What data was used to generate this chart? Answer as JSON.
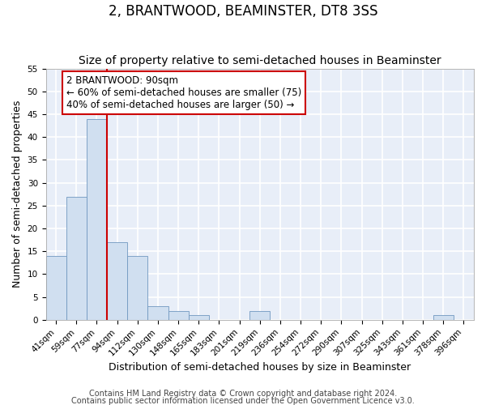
{
  "title": "2, BRANTWOOD, BEAMINSTER, DT8 3SS",
  "subtitle": "Size of property relative to semi-detached houses in Beaminster",
  "xlabel": "Distribution of semi-detached houses by size in Beaminster",
  "ylabel": "Number of semi-detached properties",
  "bin_labels": [
    "41sqm",
    "59sqm",
    "77sqm",
    "94sqm",
    "112sqm",
    "130sqm",
    "148sqm",
    "165sqm",
    "183sqm",
    "201sqm",
    "219sqm",
    "236sqm",
    "254sqm",
    "272sqm",
    "290sqm",
    "307sqm",
    "325sqm",
    "343sqm",
    "361sqm",
    "378sqm",
    "396sqm"
  ],
  "bar_values": [
    14,
    27,
    44,
    17,
    14,
    3,
    2,
    1,
    0,
    0,
    2,
    0,
    0,
    0,
    0,
    0,
    0,
    0,
    0,
    1,
    0
  ],
  "bar_color": "#d0dff0",
  "bar_edge_color": "#7098c0",
  "ylim": [
    0,
    55
  ],
  "yticks": [
    0,
    5,
    10,
    15,
    20,
    25,
    30,
    35,
    40,
    45,
    50,
    55
  ],
  "property_line_color": "#cc0000",
  "annotation_line1": "2 BRANTWOOD: 90sqm",
  "annotation_line2": "← 60% of semi-detached houses are smaller (75)",
  "annotation_line3": "40% of semi-detached houses are larger (50) →",
  "footer_line1": "Contains HM Land Registry data © Crown copyright and database right 2024.",
  "footer_line2": "Contains public sector information licensed under the Open Government Licence v3.0.",
  "background_color": "#ffffff",
  "plot_background_color": "#e8eef8",
  "grid_color": "#ffffff",
  "title_fontsize": 12,
  "subtitle_fontsize": 10,
  "axis_label_fontsize": 9,
  "tick_fontsize": 7.5,
  "footer_fontsize": 7,
  "annotation_fontsize": 8.5
}
